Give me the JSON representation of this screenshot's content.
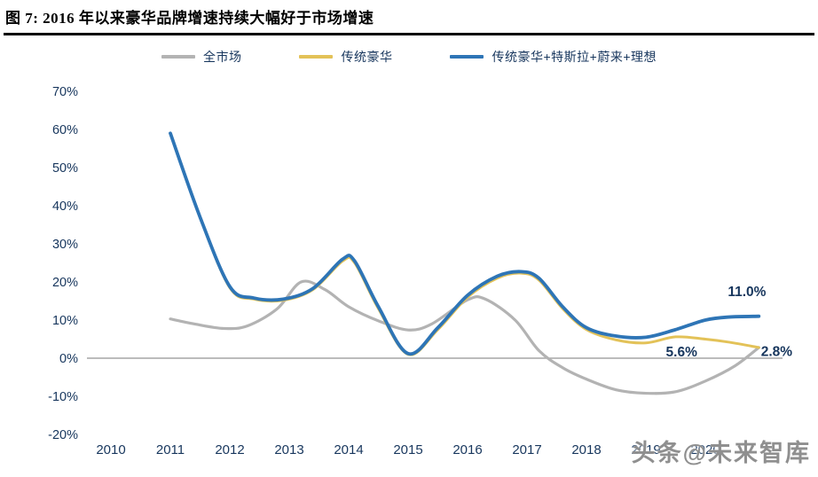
{
  "title": "图 7: 2016 年以来豪华品牌增速持续大幅好于市场增速",
  "watermark": "头条@未来智库",
  "colors": {
    "axis_text": "#17365d",
    "zero_line": "#a6a6a6",
    "title_text": "#000000"
  },
  "chart_data": {
    "type": "line",
    "title": "2016 年以来豪华品牌增速持续大幅好于市场增速",
    "xlabel": "",
    "ylabel": "",
    "ylim": [
      -20,
      70
    ],
    "y_ticks": [
      70,
      60,
      50,
      40,
      30,
      20,
      10,
      0,
      -10,
      -20
    ],
    "y_tick_suffix": "%",
    "x_ticks": [
      2010,
      2011,
      2012,
      2013,
      2014,
      2015,
      2016,
      2017,
      2018,
      2019,
      2020
    ],
    "grid": "zero-line-only",
    "legend_position": "top-center",
    "series": [
      {
        "name": "全市场",
        "slug": "total-market",
        "color": "#b3b3b3",
        "width": 3.2,
        "points": [
          [
            2011,
            10.3
          ],
          [
            2011.4,
            9
          ],
          [
            2011.9,
            7.8
          ],
          [
            2012.3,
            8.5
          ],
          [
            2012.8,
            13
          ],
          [
            2013.2,
            20
          ],
          [
            2013.6,
            18
          ],
          [
            2014,
            13.5
          ],
          [
            2014.5,
            9.8
          ],
          [
            2015,
            7.4
          ],
          [
            2015.4,
            9
          ],
          [
            2016,
            15.3
          ],
          [
            2016.3,
            15.5
          ],
          [
            2016.8,
            10
          ],
          [
            2017.2,
            2
          ],
          [
            2017.6,
            -2.5
          ],
          [
            2018,
            -5.5
          ],
          [
            2018.5,
            -8.3
          ],
          [
            2019,
            -9.2
          ],
          [
            2019.5,
            -8.8
          ],
          [
            2020,
            -6
          ],
          [
            2020.5,
            -2
          ],
          [
            2020.9,
            2.8
          ]
        ]
      },
      {
        "name": "传统豪华",
        "slug": "traditional-luxury",
        "color": "#e3c258",
        "width": 3,
        "points": [
          [
            2011,
            59
          ],
          [
            2011.5,
            37
          ],
          [
            2012,
            18.5
          ],
          [
            2012.4,
            15.5
          ],
          [
            2012.9,
            15.2
          ],
          [
            2013.4,
            18
          ],
          [
            2013.9,
            25.5
          ],
          [
            2014.1,
            25
          ],
          [
            2014.5,
            13
          ],
          [
            2015,
            1
          ],
          [
            2015.5,
            7.5
          ],
          [
            2016,
            16
          ],
          [
            2016.5,
            21
          ],
          [
            2016.9,
            22.3
          ],
          [
            2017.2,
            20.5
          ],
          [
            2017.6,
            13
          ],
          [
            2018,
            7.5
          ],
          [
            2018.5,
            4.8
          ],
          [
            2019,
            4
          ],
          [
            2019.5,
            5.6
          ],
          [
            2020,
            5
          ],
          [
            2020.4,
            4.2
          ],
          [
            2020.9,
            2.8
          ]
        ]
      },
      {
        "name": "传统豪华+特斯拉+蔚来+理想",
        "slug": "traditional-luxury-tesla-nio-li",
        "color": "#2e75b6",
        "width": 3.8,
        "points": [
          [
            2011,
            59
          ],
          [
            2011.5,
            37
          ],
          [
            2012,
            18.8
          ],
          [
            2012.4,
            15.8
          ],
          [
            2012.9,
            15.5
          ],
          [
            2013.4,
            18.3
          ],
          [
            2013.9,
            26
          ],
          [
            2014.1,
            25.5
          ],
          [
            2014.5,
            13.5
          ],
          [
            2015,
            1.2
          ],
          [
            2015.5,
            8
          ],
          [
            2016,
            16.5
          ],
          [
            2016.5,
            21.5
          ],
          [
            2016.9,
            22.7
          ],
          [
            2017.2,
            21
          ],
          [
            2017.6,
            13.5
          ],
          [
            2018,
            8
          ],
          [
            2018.5,
            5.8
          ],
          [
            2019,
            5.5
          ],
          [
            2019.5,
            7.5
          ],
          [
            2020,
            10
          ],
          [
            2020.4,
            10.8
          ],
          [
            2020.9,
            11
          ]
        ]
      }
    ],
    "annotations": [
      {
        "text": "11.0%",
        "x": 2020.7,
        "y": 17.5
      },
      {
        "text": "5.6%",
        "x": 2019.6,
        "y": 1.6
      },
      {
        "text": "2.8%",
        "x": 2021.2,
        "y": 1.8
      }
    ]
  }
}
